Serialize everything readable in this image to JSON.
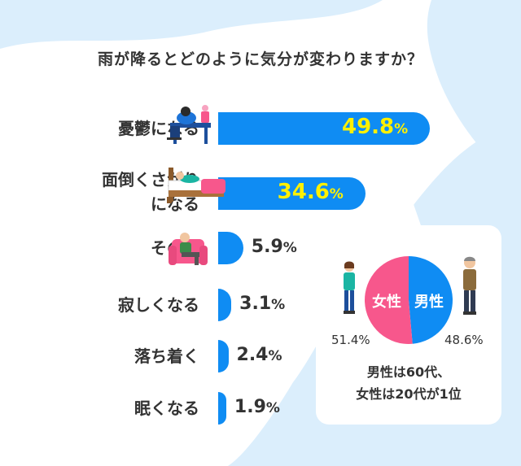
{
  "title": "雨が降るとどのように気分が変わりますか？",
  "chart_data": {
    "type": "bar",
    "orientation": "horizontal",
    "categories": [
      {
        "line1": "憂鬱になる",
        "line2": ""
      },
      {
        "line1": "面倒くさがり",
        "line2": "になる"
      },
      {
        "line1": "その他",
        "line2": ""
      },
      {
        "line1": "寂しくなる",
        "line2": ""
      },
      {
        "line1": "落ち着く",
        "line2": ""
      },
      {
        "line1": "眠くなる",
        "line2": ""
      }
    ],
    "values": [
      49.8,
      34.6,
      5.9,
      3.1,
      2.4,
      1.9
    ],
    "value_texts": [
      "49.8",
      "34.6",
      "5.9",
      "3.1",
      "2.4",
      "1.9"
    ],
    "unit": "%",
    "bar_color": "#0f8cf3",
    "highlight_text_color": "#fff000"
  },
  "inset": {
    "chart_data": {
      "type": "pie",
      "slices": [
        {
          "label": "女性",
          "value": 51.4,
          "value_text": "51.4%",
          "color": "#f7578c"
        },
        {
          "label": "男性",
          "value": 48.6,
          "value_text": "48.6%",
          "color": "#0f8cf3"
        }
      ]
    },
    "summary_line1": "男性は60代、",
    "summary_line2": "女性は20代が1位"
  },
  "colors": {
    "background_blob": "#dbeefc",
    "accent_blue": "#0f8cf3",
    "accent_pink": "#f7578c"
  },
  "icons": [
    "depressed-person-icon",
    "lazy-person-in-bed-icon",
    "person-in-armchair-icon",
    "woman-icon",
    "man-icon"
  ]
}
